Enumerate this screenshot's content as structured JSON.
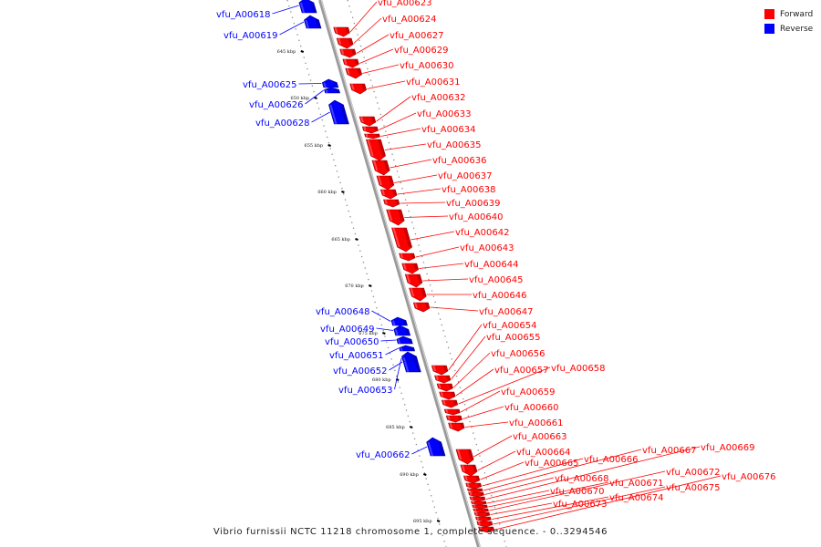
{
  "legend": {
    "forward": {
      "label": "Forward",
      "color": "#ff0000"
    },
    "reverse": {
      "label": "Reverse",
      "color": "#0000ff"
    }
  },
  "caption": "Vibrio furnissii NCTC 11218 chromosome 1, complete sequence. - 0..3294546",
  "ticks": [
    "645 kbp",
    "650 kbp",
    "655 kbp",
    "660 kbp",
    "665 kbp",
    "670 kbp",
    "675 kbp",
    "680 kbp",
    "685 kbp",
    "690 kbp",
    "695 kbp"
  ],
  "genes": [
    {
      "name": "vfu_A00618",
      "strand": "reverse"
    },
    {
      "name": "vfu_A00619",
      "strand": "reverse"
    },
    {
      "name": "vfu_A00623",
      "strand": "forward"
    },
    {
      "name": "vfu_A00624",
      "strand": "forward"
    },
    {
      "name": "vfu_A00627",
      "strand": "forward"
    },
    {
      "name": "vfu_A00629",
      "strand": "forward"
    },
    {
      "name": "vfu_A00630",
      "strand": "forward"
    },
    {
      "name": "vfu_A00625",
      "strand": "reverse"
    },
    {
      "name": "vfu_A00626",
      "strand": "reverse"
    },
    {
      "name": "vfu_A00631",
      "strand": "forward"
    },
    {
      "name": "vfu_A00628",
      "strand": "reverse"
    },
    {
      "name": "vfu_A00632",
      "strand": "forward"
    },
    {
      "name": "vfu_A00633",
      "strand": "forward"
    },
    {
      "name": "vfu_A00634",
      "strand": "forward"
    },
    {
      "name": "vfu_A00635",
      "strand": "forward"
    },
    {
      "name": "vfu_A00636",
      "strand": "forward"
    },
    {
      "name": "vfu_A00637",
      "strand": "forward"
    },
    {
      "name": "vfu_A00638",
      "strand": "forward"
    },
    {
      "name": "vfu_A00639",
      "strand": "forward"
    },
    {
      "name": "vfu_A00640",
      "strand": "forward"
    },
    {
      "name": "vfu_A00642",
      "strand": "forward"
    },
    {
      "name": "vfu_A00643",
      "strand": "forward"
    },
    {
      "name": "vfu_A00644",
      "strand": "forward"
    },
    {
      "name": "vfu_A00645",
      "strand": "forward"
    },
    {
      "name": "vfu_A00646",
      "strand": "forward"
    },
    {
      "name": "vfu_A00647",
      "strand": "forward"
    },
    {
      "name": "vfu_A00648",
      "strand": "reverse"
    },
    {
      "name": "vfu_A00649",
      "strand": "reverse"
    },
    {
      "name": "vfu_A00650",
      "strand": "reverse"
    },
    {
      "name": "vfu_A00651",
      "strand": "reverse"
    },
    {
      "name": "vfu_A00652",
      "strand": "reverse"
    },
    {
      "name": "vfu_A00653",
      "strand": "reverse"
    },
    {
      "name": "vfu_A00654",
      "strand": "forward"
    },
    {
      "name": "vfu_A00655",
      "strand": "forward"
    },
    {
      "name": "vfu_A00656",
      "strand": "forward"
    },
    {
      "name": "vfu_A00657",
      "strand": "forward"
    },
    {
      "name": "vfu_A00658",
      "strand": "forward"
    },
    {
      "name": "vfu_A00659",
      "strand": "forward"
    },
    {
      "name": "vfu_A00660",
      "strand": "forward"
    },
    {
      "name": "vfu_A00661",
      "strand": "forward"
    },
    {
      "name": "vfu_A00662",
      "strand": "reverse"
    },
    {
      "name": "vfu_A00663",
      "strand": "forward"
    },
    {
      "name": "vfu_A00664",
      "strand": "forward"
    },
    {
      "name": "vfu_A00665",
      "strand": "forward"
    },
    {
      "name": "vfu_A00666",
      "strand": "forward"
    },
    {
      "name": "vfu_A00667",
      "strand": "forward"
    },
    {
      "name": "vfu_A00668",
      "strand": "forward"
    },
    {
      "name": "vfu_A00669",
      "strand": "forward"
    },
    {
      "name": "vfu_A00670",
      "strand": "forward"
    },
    {
      "name": "vfu_A00671",
      "strand": "forward"
    },
    {
      "name": "vfu_A00672",
      "strand": "forward"
    },
    {
      "name": "vfu_A00673",
      "strand": "forward"
    },
    {
      "name": "vfu_A00674",
      "strand": "forward"
    },
    {
      "name": "vfu_A00675",
      "strand": "forward"
    },
    {
      "name": "vfu_A00676",
      "strand": "forward"
    }
  ]
}
